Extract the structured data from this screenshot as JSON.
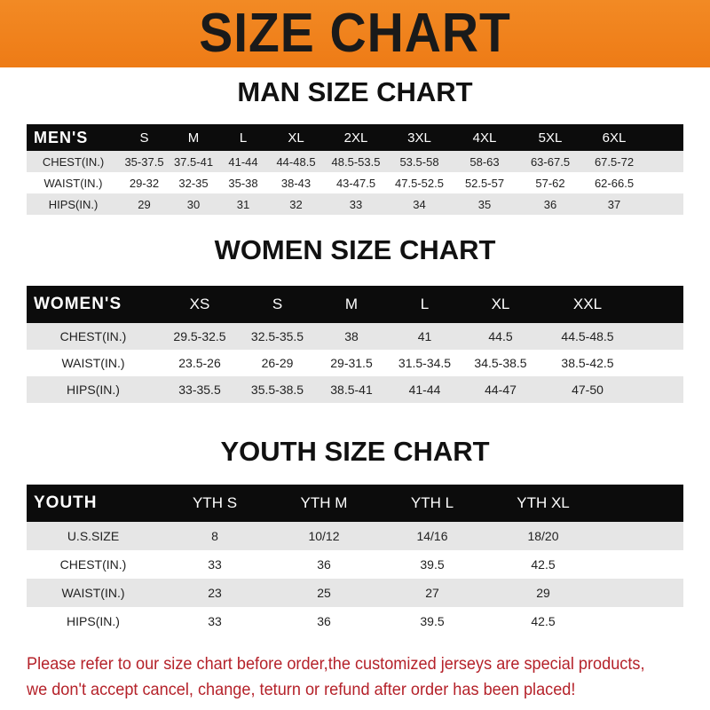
{
  "banner_title": "SIZE CHART",
  "colors": {
    "banner": "#f0841e",
    "header_row": "#0c0c0c",
    "stripe": "#e6e6e6",
    "note": "#b5222a"
  },
  "men": {
    "title": "MAN SIZE CHART",
    "header": "MEN'S",
    "sizes": [
      "S",
      "M",
      "L",
      "XL",
      "2XL",
      "3XL",
      "4XL",
      "5XL",
      "6XL"
    ],
    "rows": [
      {
        "label": "CHEST(IN.)",
        "values": [
          "35-37.5",
          "37.5-41",
          "41-44",
          "44-48.5",
          "48.5-53.5",
          "53.5-58",
          "58-63",
          "63-67.5",
          "67.5-72"
        ]
      },
      {
        "label": "WAIST(IN.)",
        "values": [
          "29-32",
          "32-35",
          "35-38",
          "38-43",
          "43-47.5",
          "47.5-52.5",
          "52.5-57",
          "57-62",
          "62-66.5"
        ]
      },
      {
        "label": "HIPS(IN.)",
        "values": [
          "29",
          "30",
          "31",
          "32",
          "33",
          "34",
          "35",
          "36",
          "37"
        ]
      }
    ]
  },
  "women": {
    "title": "WOMEN SIZE CHART",
    "header": "WOMEN'S",
    "sizes": [
      "XS",
      "S",
      "M",
      "L",
      "XL",
      "XXL"
    ],
    "rows": [
      {
        "label": "CHEST(IN.)",
        "values": [
          "29.5-32.5",
          "32.5-35.5",
          "38",
          "41",
          "44.5",
          "44.5-48.5"
        ]
      },
      {
        "label": "WAIST(IN.)",
        "values": [
          "23.5-26",
          "26-29",
          "29-31.5",
          "31.5-34.5",
          "34.5-38.5",
          "38.5-42.5"
        ]
      },
      {
        "label": "HIPS(IN.)",
        "values": [
          "33-35.5",
          "35.5-38.5",
          "38.5-41",
          "41-44",
          "44-47",
          "47-50"
        ]
      }
    ]
  },
  "youth": {
    "title": "YOUTH SIZE CHART",
    "header": "YOUTH",
    "sizes": [
      "YTH S",
      "YTH M",
      "YTH L",
      "YTH XL"
    ],
    "rows": [
      {
        "label": "U.S.SIZE",
        "values": [
          "8",
          "10/12",
          "14/16",
          "18/20"
        ]
      },
      {
        "label": "CHEST(IN.)",
        "values": [
          "33",
          "36",
          "39.5",
          "42.5"
        ]
      },
      {
        "label": "WAIST(IN.)",
        "values": [
          "23",
          "25",
          "27",
          "29"
        ]
      },
      {
        "label": "HIPS(IN.)",
        "values": [
          "33",
          "36",
          "39.5",
          "42.5"
        ]
      }
    ]
  },
  "note": {
    "line1": "Please refer to our size chart before order,the customized jerseys are special products,",
    "line2": "we don't accept cancel, change, teturn or refund after order has been placed!"
  }
}
